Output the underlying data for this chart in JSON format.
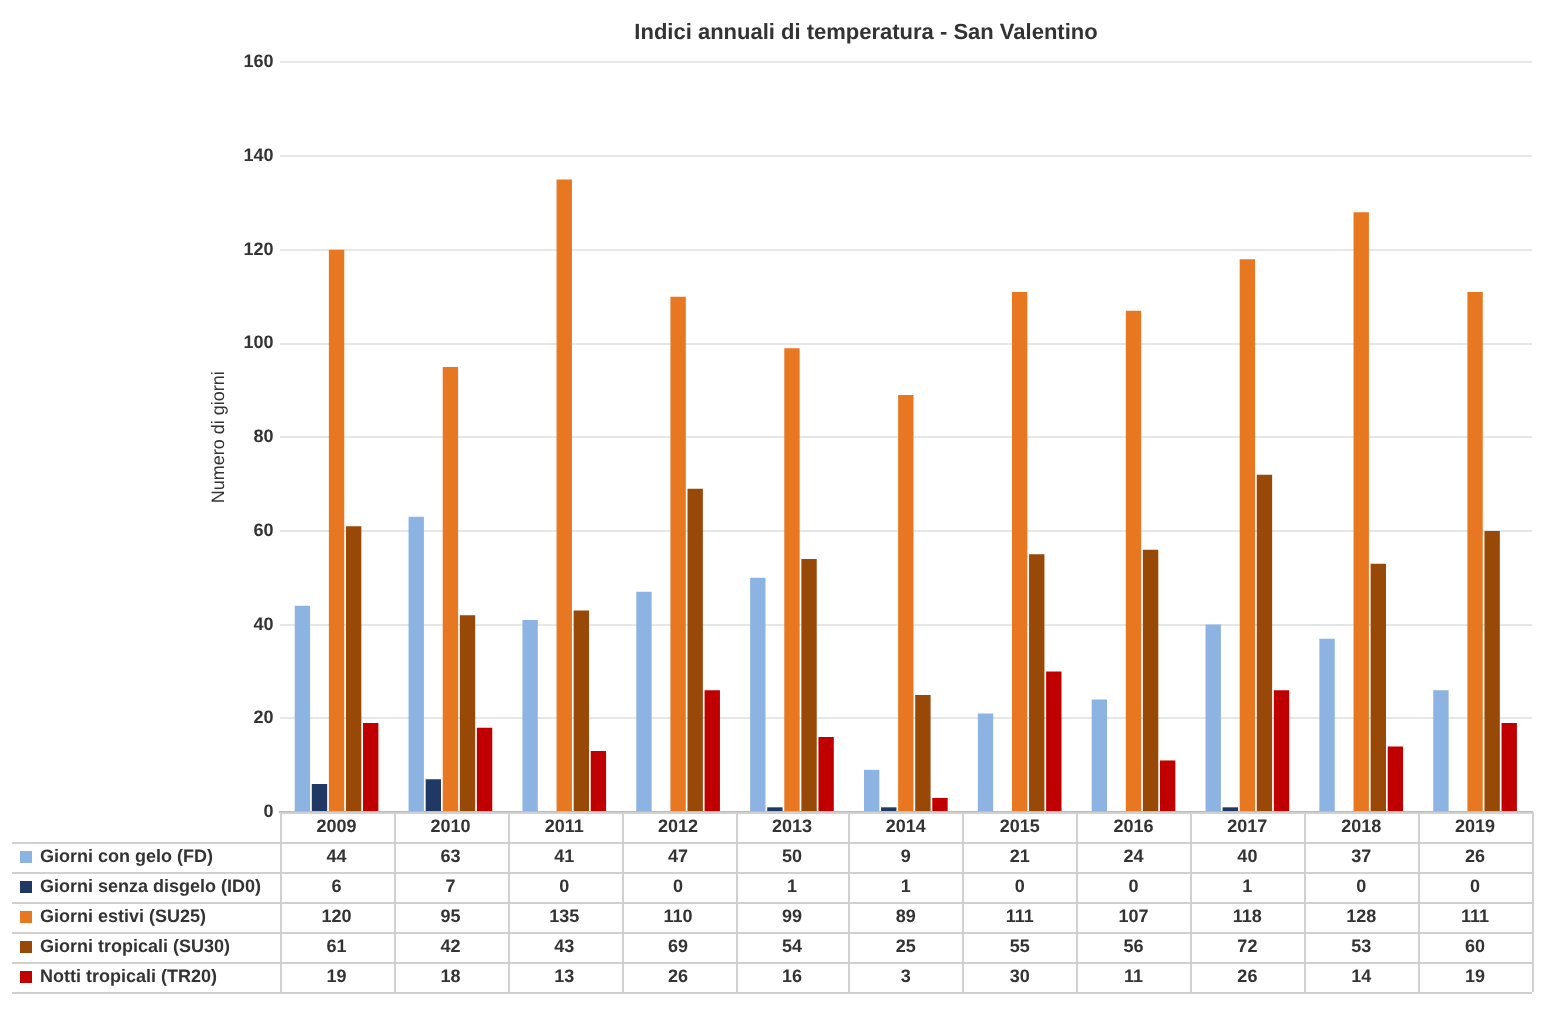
{
  "chart_data": {
    "type": "bar",
    "title": "Indici annuali di temperatura - San Valentino",
    "ylabel": "Numero di giorni",
    "categories": [
      "2009",
      "2010",
      "2011",
      "2012",
      "2013",
      "2014",
      "2015",
      "2016",
      "2017",
      "2018",
      "2019"
    ],
    "series": [
      {
        "name": "Giorni con gelo (FD)",
        "color": "#8db3e2",
        "values": [
          44,
          63,
          41,
          47,
          50,
          9,
          21,
          24,
          40,
          37,
          26
        ]
      },
      {
        "name": "Giorni senza disgelo (ID0)",
        "color": "#1f3864",
        "values": [
          6,
          7,
          0,
          0,
          1,
          1,
          0,
          0,
          1,
          0,
          0
        ]
      },
      {
        "name": "Giorni estivi (SU25)",
        "color": "#e87722",
        "values": [
          120,
          95,
          135,
          110,
          99,
          89,
          111,
          107,
          118,
          128,
          111
        ]
      },
      {
        "name": "Giorni tropicali (SU30)",
        "color": "#984807",
        "values": [
          61,
          42,
          43,
          69,
          54,
          25,
          55,
          56,
          72,
          53,
          60
        ]
      },
      {
        "name": "Notti tropicali (TR20)",
        "color": "#c00000",
        "values": [
          19,
          18,
          13,
          26,
          16,
          3,
          30,
          11,
          26,
          14,
          19
        ]
      }
    ],
    "ylim": [
      0,
      160
    ],
    "yticks": [
      0,
      20,
      40,
      60,
      80,
      100,
      120,
      140,
      160
    ],
    "grid": "y",
    "legend": "bottom",
    "data_labels": true
  }
}
